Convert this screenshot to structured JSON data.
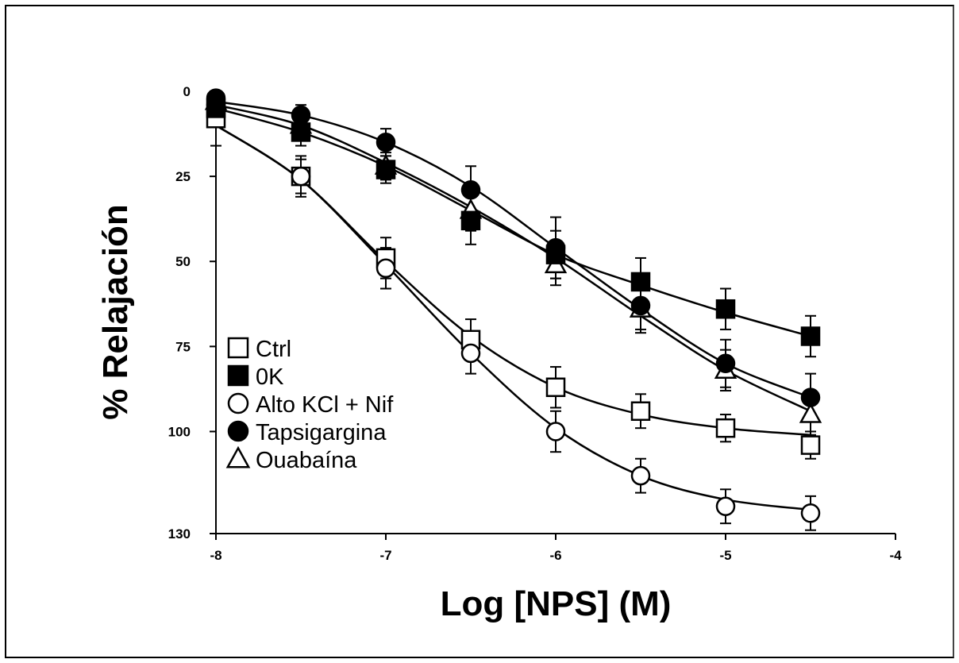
{
  "chart_data": {
    "type": "line",
    "title": "",
    "xlabel": "Log [NPS] (M)",
    "ylabel": "% Relajación",
    "xlim": [
      -8,
      -4
    ],
    "ylim": [
      0,
      130
    ],
    "y_inverted": true,
    "xticks": [
      "-8",
      "-7",
      "-6",
      "-5",
      "-4"
    ],
    "yticks": [
      "0",
      "25",
      "50",
      "75",
      "100",
      "130"
    ],
    "xtick_values": [
      -8,
      -7,
      -6,
      -5,
      -4
    ],
    "ytick_values": [
      0,
      25,
      50,
      75,
      100,
      130
    ],
    "grid": false,
    "legend_position": "bottom-left",
    "x": [
      -8,
      -7.5,
      -7,
      -6.5,
      -6,
      -5.5,
      -5,
      -4.5
    ],
    "series": [
      {
        "name": "Ctrl",
        "marker": "square-open",
        "values": [
          8,
          25,
          49,
          73,
          87,
          94,
          99,
          104
        ],
        "errors": [
          8,
          6,
          6,
          6,
          6,
          5,
          4,
          4
        ],
        "curve": [
          10,
          26,
          50,
          72,
          87,
          95,
          99,
          101
        ]
      },
      {
        "name": "0K",
        "marker": "square-filled",
        "values": [
          5,
          12,
          23,
          38,
          48,
          56,
          64,
          72
        ],
        "errors": [
          4,
          4,
          4,
          7,
          7,
          7,
          6,
          6
        ],
        "curve": [
          5,
          12,
          22,
          35,
          48,
          57,
          65,
          72
        ]
      },
      {
        "name": "Alto KCl + Nif",
        "marker": "circle-open",
        "values": [
          4,
          25,
          52,
          77,
          100,
          113,
          122,
          124
        ],
        "errors": [
          4,
          5,
          6,
          6,
          6,
          5,
          5,
          5
        ],
        "curve": [
          10,
          26,
          51,
          77,
          99,
          113,
          120,
          123
        ]
      },
      {
        "name": "Tapsigargina",
        "marker": "circle-filled",
        "values": [
          2,
          7,
          15,
          29,
          46,
          63,
          80,
          90
        ],
        "errors": [
          2,
          3,
          4,
          7,
          9,
          8,
          7,
          7
        ],
        "curve": [
          3,
          7,
          15,
          28,
          46,
          64,
          80,
          90
        ]
      },
      {
        "name": "Ouabaína",
        "marker": "triangle-open",
        "values": [
          3,
          10,
          22,
          35,
          51,
          64,
          82,
          95
        ],
        "errors": [
          3,
          4,
          4,
          6,
          6,
          6,
          6,
          6
        ],
        "curve": [
          4,
          10,
          21,
          34,
          49,
          66,
          82,
          94
        ]
      }
    ]
  }
}
